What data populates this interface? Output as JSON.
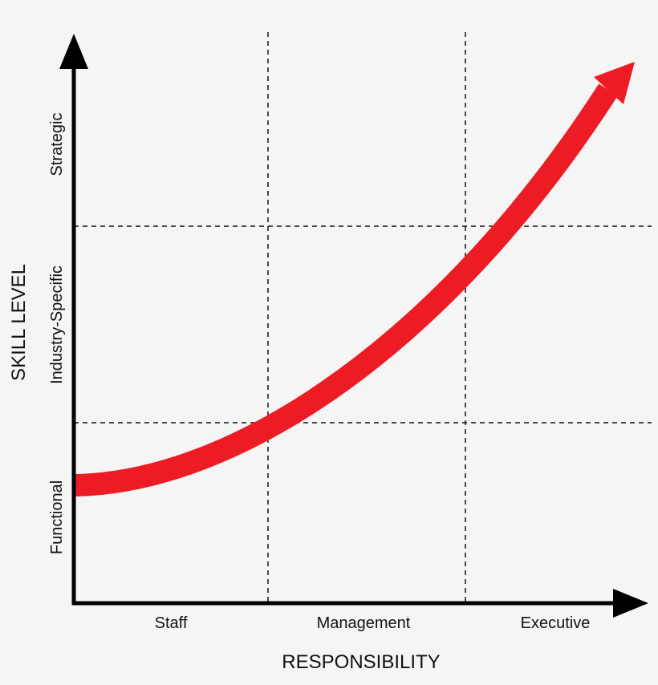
{
  "x_axis": {
    "title": "RESPONSIBILITY",
    "categories": [
      "Staff",
      "Management",
      "Executive"
    ]
  },
  "y_axis": {
    "title": "SKILL LEVEL",
    "categories": [
      "Functional",
      "Industry-Specific",
      "Strategic"
    ]
  }
}
